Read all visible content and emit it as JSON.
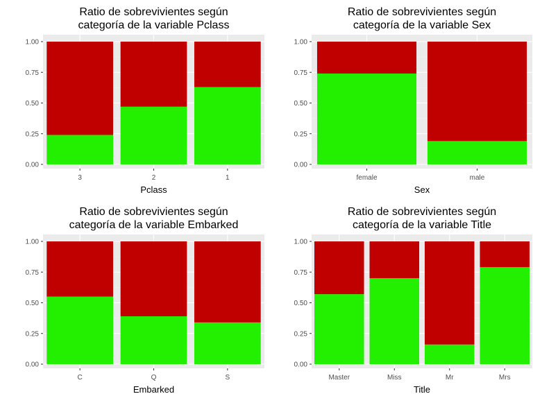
{
  "colors": {
    "panel_bg": "#ebebeb",
    "grid_major": "#ffffff",
    "not_survived": "#c00000",
    "survived": "#22f000",
    "tick_text": "#4d4d4d"
  },
  "chart_data": [
    {
      "type": "bar",
      "stacked": true,
      "title_lines": [
        "Ratio de sobrevivientes según",
        "categoría de la variable Pclass"
      ],
      "xlabel": "Pclass",
      "ylabel": "",
      "ylim": [
        0,
        1
      ],
      "yticks": [
        "0.00",
        "0.25",
        "0.50",
        "0.75",
        "1.00"
      ],
      "grid": true,
      "legend": "none",
      "categories": [
        "3",
        "2",
        "1"
      ],
      "series": [
        {
          "values": [
            0.24,
            0.47,
            0.63
          ]
        },
        {
          "values": [
            0.76,
            0.53,
            0.37
          ]
        }
      ]
    },
    {
      "type": "bar",
      "stacked": true,
      "title_lines": [
        "Ratio de sobrevivientes según",
        "categoría de la variable Sex"
      ],
      "xlabel": "Sex",
      "ylabel": "",
      "ylim": [
        0,
        1
      ],
      "yticks": [
        "0.00",
        "0.25",
        "0.50",
        "0.75",
        "1.00"
      ],
      "grid": true,
      "legend": "none",
      "categories": [
        "female",
        "male"
      ],
      "series": [
        {
          "values": [
            0.74,
            0.19
          ]
        },
        {
          "values": [
            0.26,
            0.81
          ]
        }
      ]
    },
    {
      "type": "bar",
      "stacked": true,
      "title_lines": [
        "Ratio de sobrevivientes según",
        "categoría de la variable Embarked"
      ],
      "xlabel": "Embarked",
      "ylabel": "",
      "ylim": [
        0,
        1
      ],
      "yticks": [
        "0.00",
        "0.25",
        "0.50",
        "0.75",
        "1.00"
      ],
      "grid": true,
      "legend": "none",
      "categories": [
        "C",
        "Q",
        "S"
      ],
      "series": [
        {
          "values": [
            0.55,
            0.39,
            0.34
          ]
        },
        {
          "values": [
            0.45,
            0.61,
            0.66
          ]
        }
      ]
    },
    {
      "type": "bar",
      "stacked": true,
      "title_lines": [
        "Ratio de sobrevivientes según",
        "categoría de la variable Title"
      ],
      "xlabel": "Title",
      "ylabel": "",
      "ylim": [
        0,
        1
      ],
      "yticks": [
        "0.00",
        "0.25",
        "0.50",
        "0.75",
        "1.00"
      ],
      "grid": true,
      "legend": "none",
      "categories": [
        "Master",
        "Miss",
        "Mr",
        "Mrs"
      ],
      "series": [
        {
          "values": [
            0.57,
            0.7,
            0.16,
            0.79
          ]
        },
        {
          "values": [
            0.43,
            0.3,
            0.84,
            0.21
          ]
        }
      ]
    }
  ]
}
